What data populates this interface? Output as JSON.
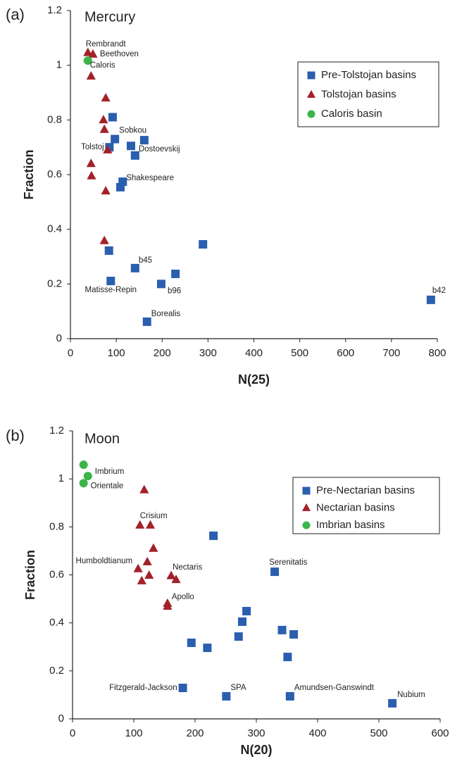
{
  "chart_data": [
    {
      "type": "scatter",
      "panel": "(a)",
      "title": "Mercury",
      "xlabel": "N(25)",
      "ylabel": "Fraction",
      "xlim": [
        0,
        800
      ],
      "xticks": [
        0,
        100,
        200,
        300,
        400,
        500,
        600,
        700,
        800
      ],
      "ylim": [
        0,
        1.2
      ],
      "yticks": [
        0,
        0.2,
        0.4,
        0.6,
        0.8,
        1,
        1.2
      ],
      "legend": "upper right",
      "series": [
        {
          "name": "Pre-Tolstojan basins",
          "color": "#2a5fb0",
          "marker": "square",
          "x": [
            92,
            97,
            85,
            132,
            161,
            141,
            114,
            109,
            289,
            84,
            141,
            229,
            88,
            198,
            167,
            786
          ],
          "values": [
            0.81,
            0.73,
            0.7,
            0.705,
            0.726,
            0.67,
            0.574,
            0.554,
            0.345,
            0.322,
            0.258,
            0.237,
            0.211,
            0.2,
            0.062,
            0.142
          ],
          "labels": [
            null,
            "Sobkou",
            null,
            null,
            null,
            "Dostoevskij",
            "Shakespeare",
            null,
            null,
            null,
            "b45",
            null,
            "Matisse-Repin",
            "b96",
            "Borealis",
            "b42"
          ]
        },
        {
          "name": "Tolstojan basins",
          "color": "#a3212a",
          "marker": "triangle",
          "x": [
            38,
            49,
            45,
            77,
            72,
            74,
            81,
            45,
            46,
            77,
            74
          ],
          "values": [
            1.046,
            1.04,
            0.96,
            0.88,
            0.8,
            0.765,
            0.69,
            0.64,
            0.595,
            0.54,
            0.358
          ],
          "labels": [
            "Rembrandt",
            "Beethoven",
            null,
            null,
            null,
            null,
            "Tolstoj",
            null,
            null,
            null,
            null
          ]
        },
        {
          "name": "Caloris basin",
          "color": "#3bb54a",
          "marker": "circle",
          "x": [
            38
          ],
          "values": [
            1.017
          ],
          "labels": [
            "Caloris"
          ]
        }
      ]
    },
    {
      "type": "scatter",
      "panel": "(b)",
      "title": "Moon",
      "xlabel": "N(20)",
      "ylabel": "Fraction",
      "xlim": [
        0,
        600
      ],
      "xticks": [
        0,
        100,
        200,
        300,
        400,
        500,
        600
      ],
      "ylim": [
        0,
        1.2
      ],
      "yticks": [
        0,
        0.2,
        0.4,
        0.6,
        0.8,
        1,
        1.2
      ],
      "legend": "upper right",
      "series": [
        {
          "name": "Pre-Nectarian basins",
          "color": "#2a5fb0",
          "marker": "square",
          "x": [
            230,
            330,
            284,
            277,
            342,
            361,
            271,
            194,
            220,
            351,
            180,
            251,
            355,
            522
          ],
          "values": [
            0.763,
            0.613,
            0.449,
            0.405,
            0.37,
            0.352,
            0.343,
            0.317,
            0.296,
            0.258,
            0.129,
            0.094,
            0.094,
            0.065
          ],
          "labels": [
            null,
            "Serenitatis",
            null,
            null,
            null,
            null,
            null,
            null,
            null,
            null,
            "Fitzgerald-Jackson",
            "SPA",
            "Amundsen-Ganswindt",
            "Nubium"
          ]
        },
        {
          "name": "Nectarian basins",
          "color": "#a3212a",
          "marker": "triangle",
          "x": [
            117,
            110,
            127,
            132,
            122,
            107,
            125,
            113,
            161,
            169,
            155,
            155
          ],
          "values": [
            0.954,
            0.807,
            0.807,
            0.71,
            0.654,
            0.625,
            0.598,
            0.575,
            0.596,
            0.58,
            0.481,
            0.469
          ],
          "labels": [
            null,
            "Crisium",
            null,
            null,
            null,
            "Humboldtianum",
            null,
            null,
            "Nectaris",
            null,
            "Apollo",
            null
          ]
        },
        {
          "name": "Imbrian basins",
          "color": "#3bb54a",
          "marker": "circle",
          "x": [
            18,
            25,
            18
          ],
          "values": [
            1.059,
            1.012,
            0.982
          ],
          "labels": [
            null,
            "Imbrium",
            "Orientale"
          ]
        }
      ]
    }
  ]
}
